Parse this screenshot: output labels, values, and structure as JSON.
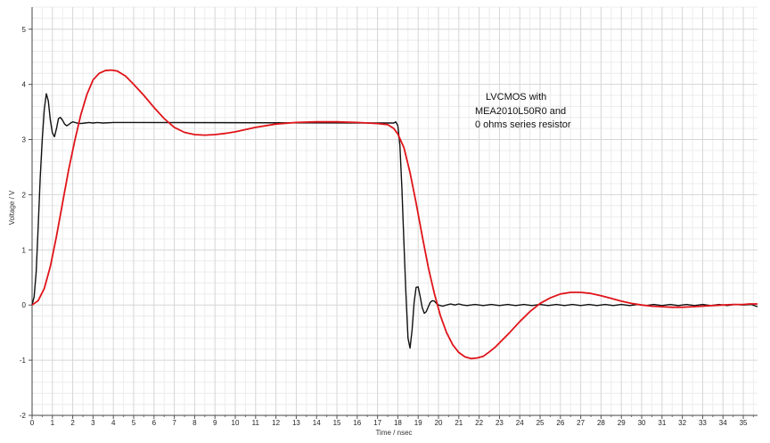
{
  "chart_data": {
    "type": "line",
    "title": "",
    "xlabel": "Time / nsec",
    "ylabel": "Voltage / V",
    "xlim": [
      0,
      35.7
    ],
    "ylim": [
      -2,
      5.4
    ],
    "x_major_ticks": [
      0,
      1,
      2,
      3,
      4,
      5,
      6,
      7,
      8,
      9,
      10,
      11,
      12,
      13,
      14,
      15,
      16,
      17,
      18,
      19,
      20,
      21,
      22,
      23,
      24,
      25,
      26,
      27,
      28,
      29,
      30,
      31,
      32,
      33,
      34,
      35
    ],
    "x_tick_labels": [
      "0",
      "1",
      "2",
      "3",
      "4",
      "5",
      "6",
      "7",
      "8",
      "9",
      "10",
      "11",
      "12",
      "13",
      "14",
      "15",
      "16",
      "17",
      "18",
      "19",
      "20",
      "21",
      "22",
      "23",
      "24",
      "25",
      "26",
      "27",
      "28",
      "29",
      "30",
      "31",
      "32",
      "33",
      "34",
      "35"
    ],
    "y_major_ticks": [
      -2,
      -1,
      0,
      1,
      2,
      3,
      4,
      5
    ],
    "y_tick_labels": [
      "-2",
      "-1",
      "0",
      "1",
      "2",
      "3",
      "4",
      "5"
    ],
    "grid": true,
    "annotation": [
      "LVCMOS with",
      "MEA2010L50R0 and",
      "0 ohms series resistor"
    ],
    "series": [
      {
        "color": "#111111",
        "x": [
          0,
          0.1,
          0.2,
          0.3,
          0.4,
          0.5,
          0.6,
          0.7,
          0.8,
          0.9,
          1.0,
          1.1,
          1.2,
          1.3,
          1.4,
          1.5,
          1.6,
          1.7,
          1.8,
          1.9,
          2.0,
          2.2,
          2.4,
          2.6,
          2.8,
          3.0,
          3.2,
          3.5,
          4.0,
          5.0,
          17.5,
          17.8,
          17.9,
          18.0,
          18.1,
          18.2,
          18.3,
          18.4,
          18.5,
          18.6,
          18.7,
          18.8,
          18.9,
          19.0,
          19.1,
          19.2,
          19.3,
          19.4,
          19.5,
          19.6,
          19.7,
          19.8,
          19.9,
          20.0,
          20.2,
          20.4,
          20.6,
          20.8,
          21.0,
          21.2,
          21.4,
          21.8,
          22.2,
          22.6,
          23.0,
          23.4,
          23.8,
          24.2,
          24.6,
          25.0,
          25.4,
          25.8,
          26.2,
          26.6,
          27.0,
          27.4,
          27.8,
          28.2,
          28.6,
          29.0,
          29.4,
          29.8,
          30.2,
          30.6,
          31.0,
          31.4,
          31.8,
          32.2,
          32.6,
          33.0,
          33.4,
          33.8,
          34.2,
          34.6,
          35.0,
          35.4,
          35.7
        ],
        "y": [
          0.0,
          0.15,
          0.6,
          1.4,
          2.3,
          3.0,
          3.55,
          3.83,
          3.7,
          3.35,
          3.12,
          3.05,
          3.2,
          3.38,
          3.4,
          3.35,
          3.28,
          3.25,
          3.27,
          3.3,
          3.32,
          3.3,
          3.29,
          3.3,
          3.31,
          3.3,
          3.31,
          3.3,
          3.31,
          3.31,
          3.3,
          3.3,
          3.32,
          3.25,
          2.9,
          2.1,
          1.1,
          0.2,
          -0.6,
          -0.78,
          -0.45,
          0.05,
          0.32,
          0.33,
          0.15,
          -0.05,
          -0.15,
          -0.12,
          -0.03,
          0.05,
          0.08,
          0.07,
          0.03,
          0.0,
          -0.02,
          0.0,
          0.02,
          0.0,
          0.02,
          0.0,
          -0.01,
          0.01,
          -0.01,
          0.01,
          -0.01,
          0.01,
          -0.01,
          0.01,
          -0.01,
          0.01,
          -0.01,
          0.01,
          -0.01,
          0.01,
          -0.01,
          0.01,
          -0.01,
          0.01,
          -0.01,
          0.01,
          -0.01,
          0.01,
          -0.01,
          0.01,
          -0.01,
          0.01,
          -0.01,
          0.01,
          -0.01,
          0.01,
          -0.01,
          0.01,
          -0.01,
          0.01,
          0.0,
          0.01,
          -0.03
        ]
      },
      {
        "color": "#e0141a",
        "x": [
          0,
          0.3,
          0.6,
          0.9,
          1.2,
          1.5,
          1.8,
          2.1,
          2.4,
          2.7,
          3.0,
          3.3,
          3.6,
          3.9,
          4.2,
          4.6,
          5.0,
          5.5,
          6.0,
          6.5,
          7.0,
          7.5,
          8.0,
          8.5,
          9.0,
          9.5,
          10.0,
          11.0,
          12.0,
          13.0,
          14.0,
          15.0,
          16.0,
          17.0,
          17.5,
          17.8,
          18.0,
          18.3,
          18.6,
          18.9,
          19.2,
          19.5,
          19.8,
          20.1,
          20.4,
          20.7,
          21.0,
          21.3,
          21.6,
          21.9,
          22.2,
          22.5,
          22.8,
          23.1,
          23.5,
          24.0,
          24.5,
          25.0,
          25.5,
          26.0,
          26.5,
          27.0,
          27.5,
          28.0,
          28.5,
          29.0,
          29.5,
          30.0,
          30.5,
          31.0,
          31.5,
          32.0,
          32.5,
          33.0,
          33.5,
          34.0,
          34.5,
          35.0,
          35.3,
          35.7
        ],
        "y": [
          0.0,
          0.08,
          0.3,
          0.7,
          1.25,
          1.85,
          2.45,
          2.98,
          3.45,
          3.82,
          4.08,
          4.2,
          4.25,
          4.26,
          4.24,
          4.15,
          4.0,
          3.8,
          3.58,
          3.38,
          3.22,
          3.13,
          3.09,
          3.08,
          3.09,
          3.11,
          3.14,
          3.22,
          3.28,
          3.31,
          3.32,
          3.32,
          3.31,
          3.29,
          3.27,
          3.2,
          3.1,
          2.85,
          2.4,
          1.85,
          1.25,
          0.68,
          0.2,
          -0.2,
          -0.5,
          -0.72,
          -0.86,
          -0.94,
          -0.97,
          -0.96,
          -0.93,
          -0.85,
          -0.76,
          -0.65,
          -0.5,
          -0.3,
          -0.12,
          0.03,
          0.13,
          0.2,
          0.23,
          0.23,
          0.21,
          0.17,
          0.12,
          0.07,
          0.03,
          0.0,
          -0.02,
          -0.03,
          -0.04,
          -0.04,
          -0.03,
          -0.02,
          -0.01,
          0.0,
          0.01,
          0.01,
          0.02,
          0.02
        ]
      }
    ]
  }
}
